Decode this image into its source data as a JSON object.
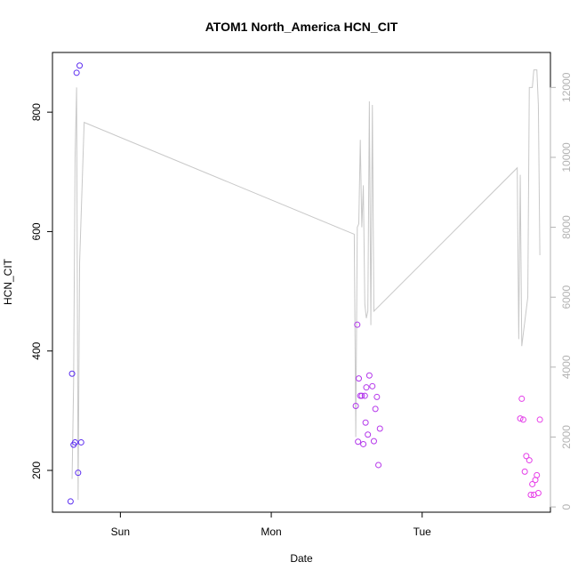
{
  "chart_data": {
    "type": "scatter",
    "title": "ATOM1 North_America HCN_CIT",
    "xlabel": "Date",
    "ylabel": "HCN_CIT",
    "x_ticks": [
      "Sun",
      "Mon",
      "Tue"
    ],
    "y_ticks": [
      200,
      400,
      600,
      800
    ],
    "y2_ticks": [
      0,
      2000,
      4000,
      6000,
      8000,
      10000,
      12000
    ],
    "xlim": [
      -0.45,
      2.85
    ],
    "ylim": [
      130,
      900
    ],
    "y2lim": [
      -150,
      13000
    ],
    "grid": false,
    "legend": "none",
    "colors": {
      "axis": "#000000",
      "secondary_axis": "#b3b3b3",
      "line": "#c8c8c8",
      "point_start": "#5a2df0",
      "point_end": "#e83ee8"
    },
    "series": [
      {
        "type": "points",
        "points": [
          {
            "x": -0.33,
            "y": 148
          },
          {
            "x": -0.32,
            "y": 362
          },
          {
            "x": -0.31,
            "y": 243
          },
          {
            "x": -0.3,
            "y": 247
          },
          {
            "x": -0.29,
            "y": 866
          },
          {
            "x": -0.28,
            "y": 196
          },
          {
            "x": -0.27,
            "y": 878
          },
          {
            "x": -0.26,
            "y": 247
          },
          {
            "x": 1.56,
            "y": 308
          },
          {
            "x": 1.57,
            "y": 444
          },
          {
            "x": 1.575,
            "y": 248
          },
          {
            "x": 1.58,
            "y": 354
          },
          {
            "x": 1.59,
            "y": 325
          },
          {
            "x": 1.6,
            "y": 325
          },
          {
            "x": 1.61,
            "y": 244
          },
          {
            "x": 1.62,
            "y": 325
          },
          {
            "x": 1.625,
            "y": 280
          },
          {
            "x": 1.63,
            "y": 339
          },
          {
            "x": 1.64,
            "y": 260
          },
          {
            "x": 1.65,
            "y": 359
          },
          {
            "x": 1.67,
            "y": 341
          },
          {
            "x": 1.68,
            "y": 249
          },
          {
            "x": 1.69,
            "y": 303
          },
          {
            "x": 1.7,
            "y": 323
          },
          {
            "x": 1.71,
            "y": 209
          },
          {
            "x": 1.72,
            "y": 270
          },
          {
            "x": 2.65,
            "y": 287
          },
          {
            "x": 2.66,
            "y": 320
          },
          {
            "x": 2.67,
            "y": 285
          },
          {
            "x": 2.68,
            "y": 198
          },
          {
            "x": 2.69,
            "y": 224
          },
          {
            "x": 2.71,
            "y": 217
          },
          {
            "x": 2.72,
            "y": 159
          },
          {
            "x": 2.73,
            "y": 177
          },
          {
            "x": 2.74,
            "y": 159
          },
          {
            "x": 2.75,
            "y": 184
          },
          {
            "x": 2.76,
            "y": 192
          },
          {
            "x": 2.77,
            "y": 162
          },
          {
            "x": 2.78,
            "y": 285
          }
        ]
      },
      {
        "type": "line",
        "axis": "secondary",
        "points": [
          {
            "x": -0.32,
            "y": 800
          },
          {
            "x": -0.31,
            "y": 3500
          },
          {
            "x": -0.3,
            "y": 10000
          },
          {
            "x": -0.29,
            "y": 12000
          },
          {
            "x": -0.28,
            "y": 200
          },
          {
            "x": -0.27,
            "y": 7000
          },
          {
            "x": -0.24,
            "y": 11000
          },
          {
            "x": 1.55,
            "y": 7800
          },
          {
            "x": 1.56,
            "y": 2000
          },
          {
            "x": 1.57,
            "y": 8000
          },
          {
            "x": 1.58,
            "y": 8100
          },
          {
            "x": 1.59,
            "y": 10500
          },
          {
            "x": 1.6,
            "y": 8000
          },
          {
            "x": 1.61,
            "y": 9200
          },
          {
            "x": 1.62,
            "y": 5800
          },
          {
            "x": 1.63,
            "y": 5400
          },
          {
            "x": 1.64,
            "y": 5600
          },
          {
            "x": 1.65,
            "y": 11600
          },
          {
            "x": 1.66,
            "y": 5200
          },
          {
            "x": 1.67,
            "y": 11500
          },
          {
            "x": 1.68,
            "y": 5600
          },
          {
            "x": 2.63,
            "y": 9700
          },
          {
            "x": 2.64,
            "y": 4800
          },
          {
            "x": 2.65,
            "y": 9500
          },
          {
            "x": 2.66,
            "y": 4600
          },
          {
            "x": 2.7,
            "y": 6000
          },
          {
            "x": 2.71,
            "y": 12000
          },
          {
            "x": 2.73,
            "y": 12000
          },
          {
            "x": 2.74,
            "y": 12500
          },
          {
            "x": 2.76,
            "y": 12500
          },
          {
            "x": 2.77,
            "y": 11500
          },
          {
            "x": 2.78,
            "y": 7200
          }
        ]
      }
    ]
  }
}
